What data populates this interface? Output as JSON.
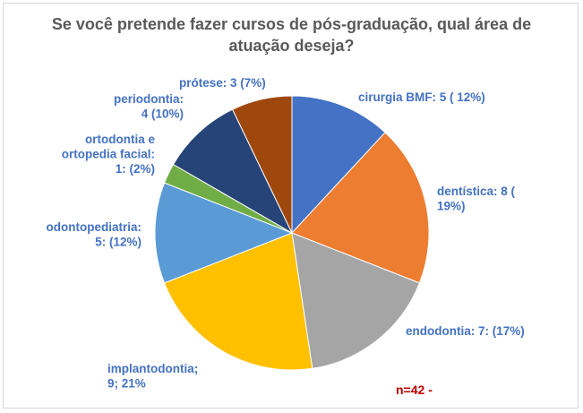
{
  "chart_data": {
    "type": "pie",
    "title": "Se você pretende fazer cursos de pós-graduação, qual área de atuação deseja?",
    "title_lines": [
      "Se você pretende fazer cursos de pós-graduação, qual área de",
      "atuação deseja?"
    ],
    "slices": [
      {
        "name": "cirurgia BMF",
        "value": 5,
        "percent": 12,
        "color": "#4472c4",
        "label_lines": [
          "cirurgia BMF: 5 ( 12%)"
        ]
      },
      {
        "name": "dentística",
        "value": 8,
        "percent": 19,
        "color": "#ed7d31",
        "label_lines": [
          "dentística: 8 (",
          "19%)"
        ]
      },
      {
        "name": "endodontia",
        "value": 7,
        "percent": 17,
        "color": "#a5a5a5",
        "label_lines": [
          "endodontia: 7: (17%)"
        ]
      },
      {
        "name": "implantodontia",
        "value": 9,
        "percent": 21,
        "color": "#ffc000",
        "label_lines": [
          "implantodontia;",
          "9; 21%"
        ]
      },
      {
        "name": "odontopediatria",
        "value": 5,
        "percent": 12,
        "color": "#5b9bd5",
        "label_lines": [
          "odontopediatria:",
          "5: (12%)"
        ]
      },
      {
        "name": "ortodontia e ortopedia facial",
        "value": 1,
        "percent": 2,
        "color": "#70ad47",
        "label_lines": [
          "ortodontia e",
          "ortopedia facial:",
          "1: (2%)"
        ]
      },
      {
        "name": "periodontia",
        "value": 4,
        "percent": 10,
        "color": "#264478",
        "label_lines": [
          "periodontia:",
          "4 (10%)"
        ]
      },
      {
        "name": "prótese",
        "value": 3,
        "percent": 7,
        "color": "#9e480e",
        "label_lines": [
          "prótese: 3 (7%)"
        ]
      }
    ],
    "total_note": "n=42  -",
    "label_color": "#4472c4",
    "note_color": "#c00000"
  }
}
